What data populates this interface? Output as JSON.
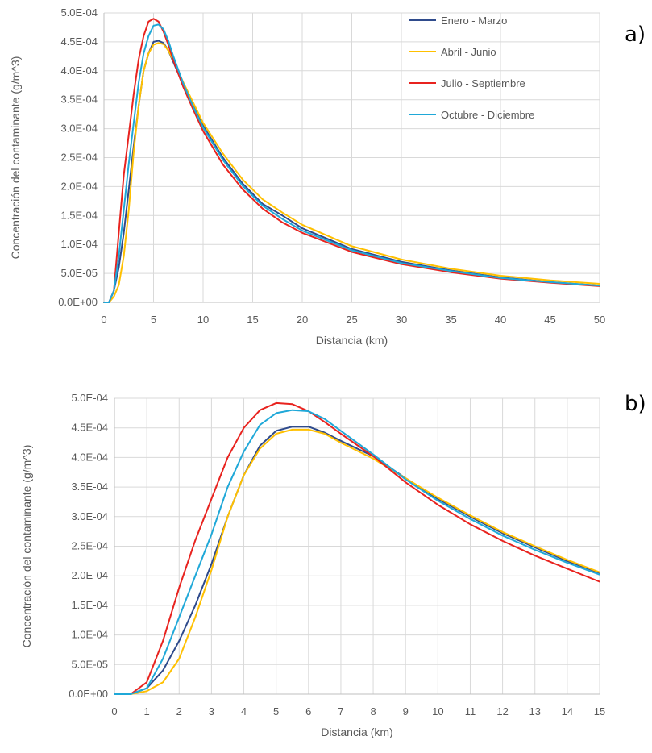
{
  "chart_data": [
    {
      "type": "line",
      "panel_label": "a)",
      "xlabel": "Distancia (km)",
      "ylabel": "Concentración del contaminante (g/m^3)",
      "xlim": [
        0,
        50
      ],
      "ylim": [
        0,
        0.0005
      ],
      "xticks": [
        "0",
        "5",
        "10",
        "15",
        "20",
        "25",
        "30",
        "35",
        "40",
        "45",
        "50"
      ],
      "yticks": [
        "0.0E+00",
        "5.0E-05",
        "1.0E-04",
        "1.5E-04",
        "2.0E-04",
        "2.5E-04",
        "3.0E-04",
        "3.5E-04",
        "4.0E-04",
        "4.5E-04",
        "5.0E-04"
      ],
      "grid": true,
      "legend": "top-right",
      "series": [
        {
          "name": "Enero - Marzo",
          "color": "#2f4b8c",
          "x": [
            0,
            0.5,
            1,
            1.5,
            2,
            2.5,
            3,
            3.5,
            4,
            4.5,
            5,
            5.5,
            6,
            6.5,
            7,
            8,
            9,
            10,
            12,
            14,
            16,
            18,
            20,
            25,
            30,
            35,
            40,
            45,
            50
          ],
          "y": [
            0,
            0,
            2e-05,
            6e-05,
            0.00012,
            0.000195,
            0.00027,
            0.00034,
            0.0004,
            0.00043,
            0.00045,
            0.000452,
            0.000448,
            0.000435,
            0.000415,
            0.000375,
            0.00034,
            0.000305,
            0.00025,
            0.000205,
            0.00017,
            0.00015,
            0.000128,
            9.2e-05,
            7e-05,
            5.5e-05,
            4.3e-05,
            3.5e-05,
            2.9e-05
          ]
        },
        {
          "name": "Abril - Junio",
          "color": "#ffc000",
          "x": [
            0,
            0.5,
            1,
            1.5,
            2,
            2.5,
            3,
            3.5,
            4,
            4.5,
            5,
            5.5,
            6,
            6.5,
            7,
            8,
            9,
            10,
            12,
            14,
            16,
            18,
            20,
            25,
            30,
            35,
            40,
            45,
            50
          ],
          "y": [
            0,
            0,
            1e-05,
            3e-05,
            8e-05,
            0.00016,
            0.00026,
            0.00034,
            0.0004,
            0.00043,
            0.000445,
            0.000448,
            0.000446,
            0.000435,
            0.000418,
            0.00038,
            0.000345,
            0.00031,
            0.000257,
            0.000212,
            0.000178,
            0.000155,
            0.000134,
            9.7e-05,
            7.4e-05,
            5.8e-05,
            4.6e-05,
            3.8e-05,
            3.2e-05
          ]
        },
        {
          "name": "Julio - Septiembre",
          "color": "#e8231f",
          "x": [
            0,
            0.5,
            1,
            1.5,
            2,
            2.5,
            3,
            3.5,
            4,
            4.5,
            5,
            5.5,
            6,
            6.5,
            7,
            8,
            9,
            10,
            12,
            14,
            16,
            18,
            20,
            25,
            30,
            35,
            40,
            45,
            50
          ],
          "y": [
            0,
            0,
            2e-05,
            0.00012,
            0.00022,
            0.00029,
            0.00036,
            0.00042,
            0.00046,
            0.000485,
            0.00049,
            0.000485,
            0.000468,
            0.000445,
            0.000418,
            0.000372,
            0.000333,
            0.000296,
            0.000238,
            0.000195,
            0.000162,
            0.000138,
            0.00012,
            8.7e-05,
            6.6e-05,
            5.2e-05,
            4.1e-05,
            3.4e-05,
            2.8e-05
          ]
        },
        {
          "name": "Octubre - Diciembre",
          "color": "#1fa8d8",
          "x": [
            0,
            0.5,
            1,
            1.5,
            2,
            2.5,
            3,
            3.5,
            4,
            4.5,
            5,
            5.5,
            6,
            6.5,
            7,
            8,
            9,
            10,
            12,
            14,
            16,
            18,
            20,
            25,
            30,
            35,
            40,
            45,
            50
          ],
          "y": [
            0,
            0,
            2e-05,
            8e-05,
            0.00016,
            0.00024,
            0.00031,
            0.00038,
            0.00043,
            0.00046,
            0.000478,
            0.00048,
            0.000472,
            0.000452,
            0.000425,
            0.000378,
            0.000338,
            0.000302,
            0.000246,
            0.000201,
            0.000167,
            0.000144,
            0.000124,
            9e-05,
            6.8e-05,
            5.4e-05,
            4.2e-05,
            3.5e-05,
            2.9e-05
          ]
        }
      ]
    },
    {
      "type": "line",
      "panel_label": "b)",
      "xlabel": "Distancia (km)",
      "ylabel": "Concentración del contaminante (g/m^3)",
      "xlim": [
        0,
        15
      ],
      "ylim": [
        0,
        0.0005
      ],
      "xticks": [
        "0",
        "1",
        "2",
        "3",
        "4",
        "5",
        "6",
        "7",
        "8",
        "9",
        "10",
        "11",
        "12",
        "13",
        "14",
        "15"
      ],
      "yticks": [
        "0.0E+00",
        "5.0E-05",
        "1.0E-04",
        "1.5E-04",
        "2.0E-04",
        "2.5E-04",
        "3.0E-04",
        "3.5E-04",
        "4.0E-04",
        "4.5E-04",
        "5.0E-04"
      ],
      "grid": true,
      "series": [
        {
          "name": "Enero - Marzo",
          "color": "#2f4b8c",
          "x": [
            0,
            0.5,
            1,
            1.5,
            2,
            2.5,
            3,
            3.5,
            4,
            4.5,
            5,
            5.5,
            6,
            6.5,
            7,
            8,
            9,
            10,
            11,
            12,
            13,
            14,
            15
          ],
          "y": [
            0,
            0,
            1e-05,
            4e-05,
            9e-05,
            0.00015,
            0.00022,
            0.0003,
            0.00037,
            0.00042,
            0.000445,
            0.000452,
            0.000452,
            0.000442,
            0.000428,
            0.000402,
            0.000365,
            0.00033,
            0.0003,
            0.000272,
            0.000248,
            0.000225,
            0.000205
          ]
        },
        {
          "name": "Abril - Junio",
          "color": "#ffc000",
          "x": [
            0,
            0.5,
            1,
            1.5,
            2,
            2.5,
            3,
            3.5,
            4,
            4.5,
            5,
            5.5,
            6,
            6.5,
            7,
            8,
            9,
            10,
            11,
            12,
            13,
            14,
            15
          ],
          "y": [
            0,
            0,
            5e-06,
            2e-05,
            6e-05,
            0.00013,
            0.00021,
            0.0003,
            0.00037,
            0.000415,
            0.00044,
            0.000447,
            0.000447,
            0.00044,
            0.000425,
            0.000398,
            0.000365,
            0.000332,
            0.000302,
            0.000274,
            0.00025,
            0.000227,
            0.000206
          ]
        },
        {
          "name": "Julio - Septiembre",
          "color": "#e8231f",
          "x": [
            0,
            0.5,
            1,
            1.5,
            2,
            2.5,
            3,
            3.5,
            4,
            4.5,
            5,
            5.5,
            6,
            6.5,
            7,
            8,
            9,
            10,
            11,
            12,
            13,
            14,
            15
          ],
          "y": [
            0,
            0,
            2e-05,
            9e-05,
            0.00018,
            0.00026,
            0.00033,
            0.0004,
            0.00045,
            0.00048,
            0.000492,
            0.00049,
            0.000478,
            0.00046,
            0.00044,
            0.000402,
            0.000358,
            0.00032,
            0.000287,
            0.000259,
            0.000234,
            0.000212,
            0.00019
          ]
        },
        {
          "name": "Octubre - Diciembre",
          "color": "#1fa8d8",
          "x": [
            0,
            0.5,
            1,
            1.5,
            2,
            2.5,
            3,
            3.5,
            4,
            4.5,
            5,
            5.5,
            6,
            6.5,
            7,
            8,
            9,
            10,
            11,
            12,
            13,
            14,
            15
          ],
          "y": [
            0,
            0,
            1e-05,
            6e-05,
            0.00013,
            0.0002,
            0.00027,
            0.00035,
            0.00041,
            0.000455,
            0.000475,
            0.00048,
            0.000478,
            0.000465,
            0.000445,
            0.000405,
            0.000363,
            0.000327,
            0.000296,
            0.000268,
            0.000244,
            0.000222,
            0.000202
          ]
        }
      ]
    }
  ]
}
